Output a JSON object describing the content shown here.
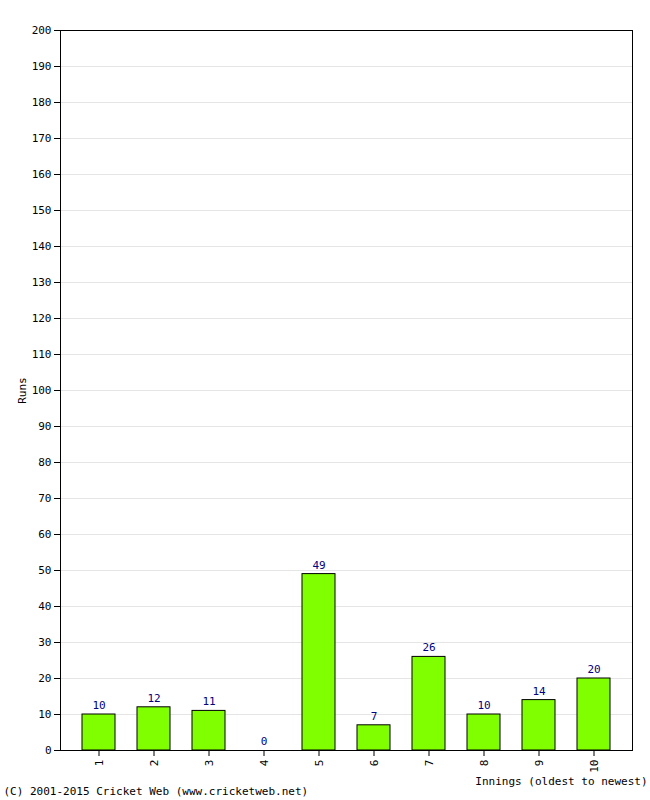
{
  "chart_data": {
    "type": "bar",
    "categories": [
      "1",
      "2",
      "3",
      "4",
      "5",
      "6",
      "7",
      "8",
      "9",
      "10"
    ],
    "values": [
      10,
      12,
      11,
      0,
      49,
      7,
      26,
      10,
      14,
      20
    ],
    "color": "#80ff00",
    "x_label": "Innings (oldest to newest)",
    "y_label": "Runs",
    "caption": "(C) 2001-2015 Cricket Web (www.cricketweb.net)",
    "ylim": [
      0,
      200
    ],
    "yticks": [
      0,
      10,
      20,
      30,
      40,
      50,
      60,
      70,
      80,
      90,
      100,
      110,
      120,
      130,
      140,
      150,
      160,
      170,
      180,
      190,
      200
    ],
    "grid": true,
    "data_labels": true
  }
}
